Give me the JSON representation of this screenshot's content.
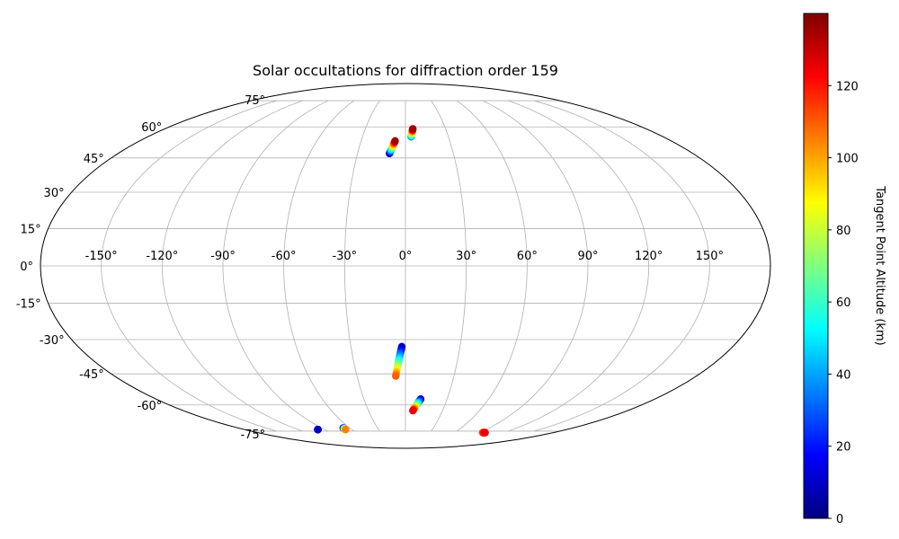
{
  "chart_data": {
    "type": "scatter",
    "projection": "mollweide",
    "title": "Solar occultations for diffraction order 159",
    "grid": true,
    "longitude_ticks": [
      "-150°",
      "-120°",
      "-90°",
      "-60°",
      "-30°",
      "0°",
      "30°",
      "60°",
      "90°",
      "120°",
      "150°"
    ],
    "latitude_ticks": [
      "75°",
      "60°",
      "45°",
      "30°",
      "15°",
      "0°",
      "-15°",
      "-30°",
      "-45°",
      "-60°",
      "-75°"
    ],
    "colorbar": {
      "label": "Tangent Point Altitude (km)",
      "range": [
        0,
        140
      ],
      "ticks": [
        "0",
        "20",
        "40",
        "60",
        "80",
        "100",
        "120"
      ],
      "colormap": "jet"
    },
    "occultations": [
      {
        "lon_start": -10,
        "lat_start": 47,
        "lon_end": -7,
        "lat_end": 53,
        "alt_start": 5,
        "alt_end": 135
      },
      {
        "lon_start": 4,
        "lat_start": 55,
        "lon_end": 5.5,
        "lat_end": 59,
        "alt_start": 35,
        "alt_end": 135
      },
      {
        "lon_start": -2,
        "lat_start": -33,
        "lon_end": -6,
        "lat_end": -46,
        "alt_start": 5,
        "alt_end": 110
      },
      {
        "lon_start": 11,
        "lat_start": -57,
        "lon_end": 6,
        "lat_end": -63,
        "alt_start": 5,
        "alt_end": 125
      },
      {
        "lon_start": -98,
        "lat_start": -74,
        "lon_end": -98,
        "lat_end": -74,
        "alt_start": 5,
        "alt_end": 10
      },
      {
        "lon_start": -67,
        "lat_start": -73,
        "lon_end": -67,
        "lat_end": -74,
        "alt_start": 5,
        "alt_end": 105
      },
      {
        "lon_start": 94,
        "lat_start": -76,
        "lon_end": 97,
        "lat_end": -76,
        "alt_start": 110,
        "alt_end": 125
      }
    ]
  }
}
